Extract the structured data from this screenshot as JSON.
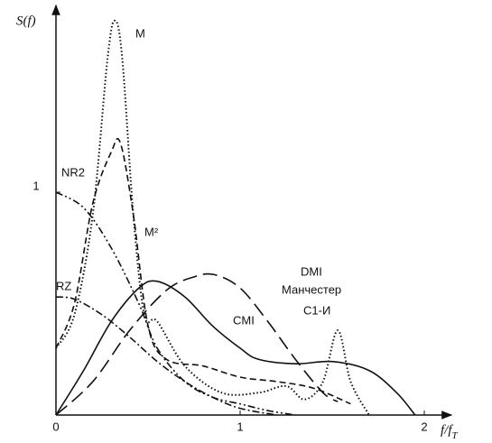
{
  "chart_data": {
    "type": "line",
    "y_label": "S(f)",
    "x_label": "f/f",
    "x_label_sub": "T",
    "xlim": [
      0,
      2.12
    ],
    "ylim": [
      0,
      1.82
    ],
    "xticks": [
      0,
      1,
      2
    ],
    "yticks": [
      1
    ],
    "series": [
      {
        "name": "M",
        "color": "#111",
        "style": "dotted",
        "x": [
          0,
          0.1,
          0.2,
          0.28,
          0.32,
          0.36,
          0.42,
          0.48,
          0.55,
          0.7,
          0.9,
          1.1,
          1.25,
          1.35,
          1.45,
          1.53,
          1.6,
          1.7
        ],
        "values": [
          0.3,
          0.45,
          0.9,
          1.6,
          1.77,
          1.6,
          0.9,
          0.45,
          0.42,
          0.22,
          0.1,
          0.1,
          0.13,
          0.07,
          0.15,
          0.38,
          0.15,
          0
        ]
      },
      {
        "name": "NR2",
        "color": "#111",
        "style": "dashed",
        "x": [
          0,
          0.1,
          0.2,
          0.3,
          0.35,
          0.42,
          0.5,
          0.6,
          0.8,
          1.0,
          1.2,
          1.4,
          1.6
        ],
        "values": [
          0.3,
          0.5,
          0.95,
          1.18,
          1.22,
          0.9,
          0.4,
          0.25,
          0.22,
          0.17,
          0.15,
          0.12,
          0.05
        ]
      },
      {
        "name": "M²",
        "color": "#111",
        "style": "dashdotdot",
        "x": [
          0,
          0.15,
          0.3,
          0.45,
          0.55,
          0.7,
          0.85,
          1.0,
          1.15,
          1.3
        ],
        "values": [
          1.0,
          0.93,
          0.75,
          0.5,
          0.3,
          0.15,
          0.08,
          0.05,
          0.02,
          0
        ]
      },
      {
        "name": "RZ",
        "color": "#111",
        "style": "dashdot",
        "x": [
          0,
          0.1,
          0.25,
          0.4,
          0.55,
          0.7,
          0.85,
          1.0,
          1.2
        ],
        "values": [
          0.53,
          0.52,
          0.45,
          0.35,
          0.24,
          0.15,
          0.08,
          0.03,
          0
        ]
      },
      {
        "name": "DMI",
        "color": "#111",
        "style": "longdash",
        "x": [
          0,
          0.2,
          0.4,
          0.6,
          0.75,
          0.86,
          1.0,
          1.15,
          1.3,
          1.45,
          1.53
        ],
        "values": [
          0,
          0.15,
          0.38,
          0.56,
          0.62,
          0.63,
          0.57,
          0.42,
          0.25,
          0.1,
          0.06
        ]
      },
      {
        "name": "CMI",
        "color": "#111",
        "style": "solid",
        "x": [
          0,
          0.15,
          0.3,
          0.45,
          0.55,
          0.7,
          0.85,
          1.0,
          1.1,
          1.3,
          1.5,
          1.7,
          1.85,
          1.95
        ],
        "values": [
          0,
          0.2,
          0.42,
          0.57,
          0.6,
          0.53,
          0.4,
          0.3,
          0.25,
          0.23,
          0.24,
          0.2,
          0.1,
          0
        ]
      }
    ],
    "annotations": [
      "Манчестер",
      "С1-И"
    ]
  }
}
